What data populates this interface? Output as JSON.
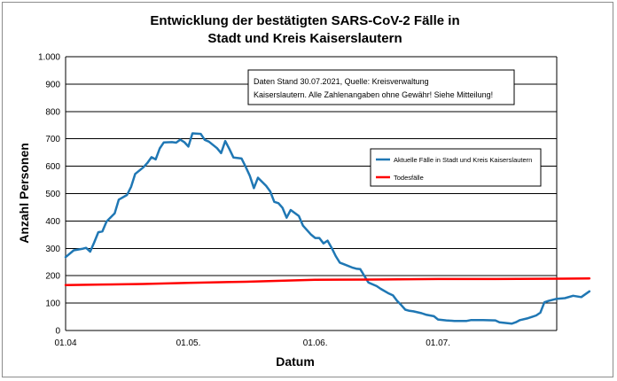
{
  "chart_data": {
    "type": "line",
    "title_lines": [
      "Entwicklung der bestätigten SARS-CoV-2 Fälle in",
      "Stadt und Kreis Kaiserslautern"
    ],
    "xlabel": "Datum",
    "ylabel": "Anzahl Personen",
    "ylim": [
      0,
      1000
    ],
    "yticks": [
      0,
      100,
      200,
      300,
      400,
      500,
      600,
      700,
      800,
      900,
      1000
    ],
    "ytick_labels": [
      "0",
      "100",
      "200",
      "300",
      "400",
      "500",
      "600",
      "700",
      "800",
      "900",
      "1.000"
    ],
    "x_start": "2021-04-01",
    "x_end": "2021-07-30",
    "xticks": [
      {
        "date": "2021-04-01",
        "label": "01.04"
      },
      {
        "date": "2021-05-01",
        "label": "01.05."
      },
      {
        "date": "2021-06-01",
        "label": "01.06."
      },
      {
        "date": "2021-07-01",
        "label": "01.07."
      }
    ],
    "grid": true,
    "legend_position": "right",
    "annotation_lines": [
      "Daten Stand 30.07.2021, Quelle: Kreisverwaltung",
      "Kaiserslautern. Alle Zahlenangaben ohne Gewähr! Siehe Mitteilung!"
    ],
    "series": [
      {
        "name": "Aktuelle Fälle in Stadt und Kreis Kaiserslautern",
        "color": "#1f77b4",
        "points": [
          [
            "2021-04-01",
            268
          ],
          [
            "2021-04-03",
            293
          ],
          [
            "2021-04-05",
            298
          ],
          [
            "2021-04-06",
            302
          ],
          [
            "2021-04-07",
            288
          ],
          [
            "2021-04-08",
            322
          ],
          [
            "2021-04-09",
            359
          ],
          [
            "2021-04-10",
            362
          ],
          [
            "2021-04-11",
            398
          ],
          [
            "2021-04-13",
            428
          ],
          [
            "2021-04-14",
            478
          ],
          [
            "2021-04-16",
            495
          ],
          [
            "2021-04-17",
            525
          ],
          [
            "2021-04-18",
            572
          ],
          [
            "2021-04-20",
            596
          ],
          [
            "2021-04-21",
            612
          ],
          [
            "2021-04-22",
            633
          ],
          [
            "2021-04-23",
            625
          ],
          [
            "2021-04-24",
            665
          ],
          [
            "2021-04-25",
            687
          ],
          [
            "2021-04-27",
            688
          ],
          [
            "2021-04-28",
            686
          ],
          [
            "2021-04-29",
            697
          ],
          [
            "2021-04-30",
            688
          ],
          [
            "2021-05-01",
            672
          ],
          [
            "2021-05-02",
            720
          ],
          [
            "2021-05-04",
            718
          ],
          [
            "2021-05-05",
            696
          ],
          [
            "2021-05-06",
            690
          ],
          [
            "2021-05-08",
            666
          ],
          [
            "2021-05-09",
            648
          ],
          [
            "2021-05-10",
            692
          ],
          [
            "2021-05-11",
            663
          ],
          [
            "2021-05-12",
            632
          ],
          [
            "2021-05-14",
            628
          ],
          [
            "2021-05-15",
            598
          ],
          [
            "2021-05-16",
            565
          ],
          [
            "2021-05-17",
            520
          ],
          [
            "2021-05-18",
            558
          ],
          [
            "2021-05-20",
            528
          ],
          [
            "2021-05-21",
            508
          ],
          [
            "2021-05-22",
            470
          ],
          [
            "2021-05-23",
            465
          ],
          [
            "2021-05-24",
            448
          ],
          [
            "2021-05-25",
            412
          ],
          [
            "2021-05-26",
            440
          ],
          [
            "2021-05-28",
            418
          ],
          [
            "2021-05-29",
            383
          ],
          [
            "2021-05-31",
            350
          ],
          [
            "2021-06-01",
            338
          ],
          [
            "2021-06-02",
            338
          ],
          [
            "2021-06-03",
            318
          ],
          [
            "2021-06-04",
            328
          ],
          [
            "2021-06-05",
            302
          ],
          [
            "2021-06-06",
            272
          ],
          [
            "2021-06-07",
            248
          ],
          [
            "2021-06-08",
            242
          ],
          [
            "2021-06-10",
            230
          ],
          [
            "2021-06-11",
            226
          ],
          [
            "2021-06-12",
            224
          ],
          [
            "2021-06-14",
            175
          ],
          [
            "2021-06-16",
            162
          ],
          [
            "2021-06-17",
            152
          ],
          [
            "2021-06-19",
            135
          ],
          [
            "2021-06-20",
            128
          ],
          [
            "2021-06-21",
            108
          ],
          [
            "2021-06-22",
            93
          ],
          [
            "2021-06-23",
            76
          ],
          [
            "2021-06-24",
            72
          ],
          [
            "2021-06-25",
            70
          ],
          [
            "2021-06-27",
            63
          ],
          [
            "2021-06-28",
            58
          ],
          [
            "2021-06-30",
            52
          ],
          [
            "2021-07-01",
            40
          ],
          [
            "2021-07-03",
            37
          ],
          [
            "2021-07-05",
            35
          ],
          [
            "2021-07-08",
            35
          ],
          [
            "2021-07-09",
            38
          ],
          [
            "2021-07-12",
            38
          ],
          [
            "2021-07-15",
            37
          ],
          [
            "2021-07-16",
            30
          ],
          [
            "2021-07-18",
            27
          ],
          [
            "2021-07-19",
            25
          ],
          [
            "2021-07-20",
            30
          ],
          [
            "2021-07-21",
            38
          ],
          [
            "2021-07-23",
            45
          ],
          [
            "2021-07-24",
            50
          ],
          [
            "2021-07-25",
            55
          ],
          [
            "2021-07-26",
            65
          ],
          [
            "2021-07-27",
            103
          ],
          [
            "2021-07-28",
            108
          ],
          [
            "2021-07-30",
            116
          ],
          [
            "2021-08-01",
            118
          ],
          [
            "2021-08-03",
            127
          ],
          [
            "2021-08-05",
            122
          ],
          [
            "2021-08-07",
            143
          ]
        ]
      },
      {
        "name": "Todesfälle",
        "color": "#ff0000",
        "points": [
          [
            "2021-04-01",
            166
          ],
          [
            "2021-04-10",
            168
          ],
          [
            "2021-04-20",
            170
          ],
          [
            "2021-05-01",
            174
          ],
          [
            "2021-05-15",
            178
          ],
          [
            "2021-06-01",
            185
          ],
          [
            "2021-06-15",
            186
          ],
          [
            "2021-07-01",
            188
          ],
          [
            "2021-07-15",
            188
          ],
          [
            "2021-08-07",
            190
          ]
        ]
      }
    ]
  }
}
